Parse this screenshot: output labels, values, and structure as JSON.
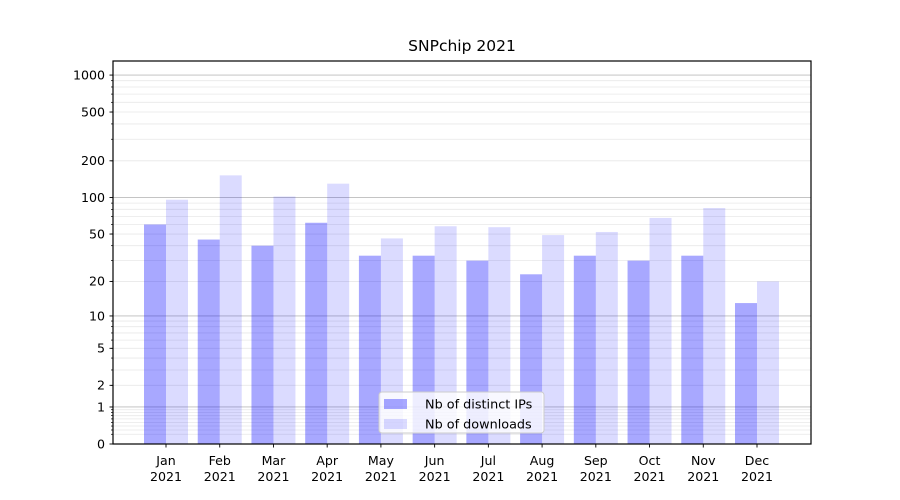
{
  "chart_data": {
    "type": "bar",
    "title": "SNPchip 2021",
    "categories": [
      "Jan",
      "Feb",
      "Mar",
      "Apr",
      "May",
      "Jun",
      "Jul",
      "Aug",
      "Sep",
      "Oct",
      "Nov",
      "Dec"
    ],
    "category_year": "2021",
    "series": [
      {
        "name": "Nb of distinct IPs",
        "color": "#0000ff",
        "alpha": 0.34,
        "values": [
          60,
          45,
          40,
          62,
          33,
          33,
          30,
          23,
          33,
          30,
          33,
          13
        ]
      },
      {
        "name": "Nb of downloads",
        "color": "#0000ff",
        "alpha": 0.14,
        "values": [
          96,
          152,
          102,
          130,
          46,
          58,
          57,
          49,
          52,
          68,
          82,
          20
        ]
      }
    ],
    "xlabel": "",
    "ylabel": "",
    "y_scale": "log1p",
    "y_ticks": [
      0,
      1,
      2,
      5,
      10,
      20,
      50,
      100,
      200,
      500,
      1000
    ],
    "ylim": [
      0,
      1300
    ],
    "grid": true,
    "legend_position": "lower center",
    "colors": {
      "bar_dark_on_white": "#aaaaf8",
      "bar_light_on_white": "#dcdcfa",
      "major_grid": "#bbbbbb",
      "minor_grid": "#e8e8e8",
      "axis": "#000000",
      "legend_border": "#cccccc"
    }
  }
}
